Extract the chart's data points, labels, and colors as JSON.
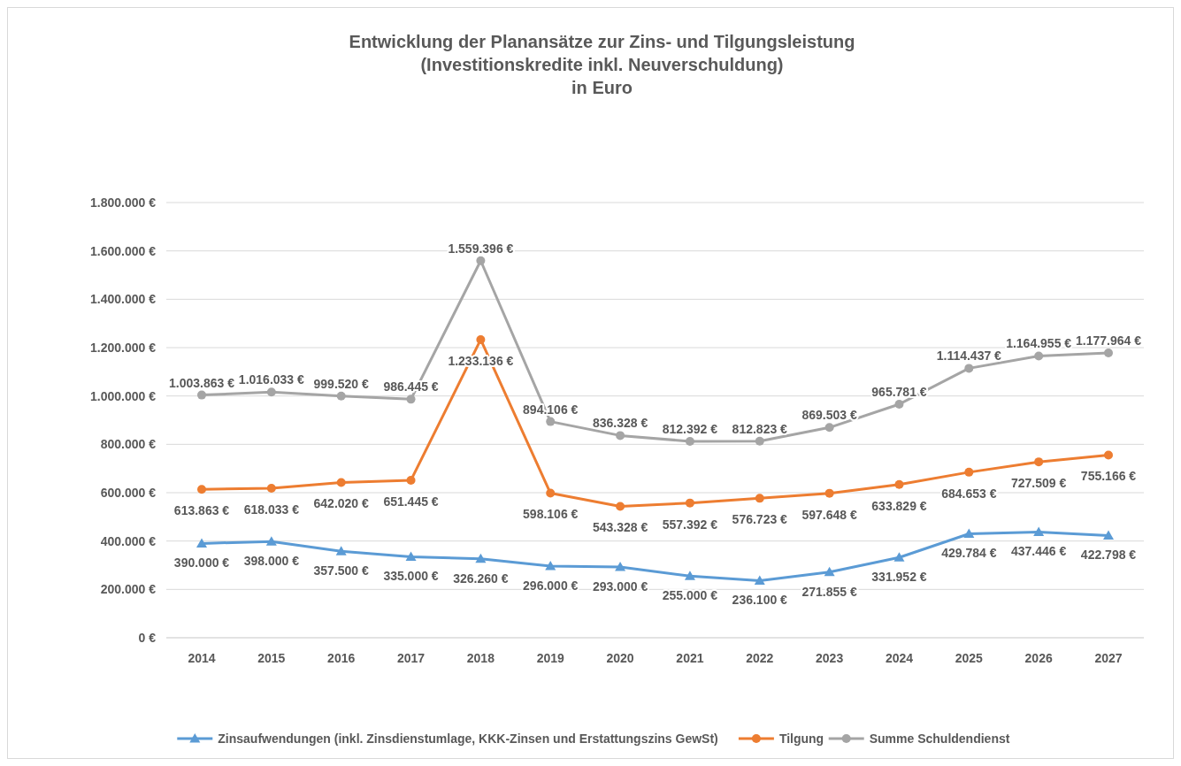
{
  "chart_data": {
    "type": "line",
    "title": "Entwicklung der Planansätze zur Zins- und Tilgungsleistung\n(Investitionskredite inkl. Neuverschuldung)\nin Euro",
    "categories": [
      "2014",
      "2015",
      "2016",
      "2017",
      "2018",
      "2019",
      "2020",
      "2021",
      "2022",
      "2023",
      "2024",
      "2025",
      "2026",
      "2027"
    ],
    "ylim": [
      0,
      1800000
    ],
    "yticks": [
      {
        "value": 0,
        "label": "0 €"
      },
      {
        "value": 200000,
        "label": "200.000 €"
      },
      {
        "value": 400000,
        "label": "400.000 €"
      },
      {
        "value": 600000,
        "label": "600.000 €"
      },
      {
        "value": 800000,
        "label": "800.000 €"
      },
      {
        "value": 1000000,
        "label": "1.000.000 €"
      },
      {
        "value": 1200000,
        "label": "1.200.000 €"
      },
      {
        "value": 1400000,
        "label": "1.400.000 €"
      },
      {
        "value": 1600000,
        "label": "1.600.000 €"
      },
      {
        "value": 1800000,
        "label": "1.800.000 €"
      }
    ],
    "grid": "y",
    "legend": "bottom",
    "series": [
      {
        "name": "Zinsaufwendungen (inkl. Zinsdienstumlage, KKK-Zinsen und Erstattungszins GewSt)",
        "color": "#5b9bd5",
        "marker": "triangle",
        "values": [
          390000,
          398000,
          357500,
          335000,
          326260,
          296000,
          293000,
          255000,
          236100,
          271855,
          331952,
          429784,
          437446,
          422798
        ],
        "value_labels": [
          "390.000 €",
          "398.000 €",
          "357.500 €",
          "335.000 €",
          "326.260 €",
          "296.000 €",
          "293.000 €",
          "255.000 €",
          "236.100 €",
          "271.855 €",
          "331.952 €",
          "429.784 €",
          "437.446 €",
          "422.798 €"
        ]
      },
      {
        "name": "Tilgung",
        "color": "#ed7d31",
        "marker": "circle",
        "values": [
          613863,
          618033,
          642020,
          651445,
          1233136,
          598106,
          543328,
          557392,
          576723,
          597648,
          633829,
          684653,
          727509,
          755166
        ],
        "value_labels": [
          "613.863 €",
          "618.033 €",
          "642.020 €",
          "651.445 €",
          "1.233.136 €",
          "598.106 €",
          "543.328 €",
          "557.392 €",
          "576.723 €",
          "597.648 €",
          "633.829 €",
          "684.653 €",
          "727.509 €",
          "755.166 €"
        ]
      },
      {
        "name": "Summe Schuldendienst",
        "color": "#a5a5a5",
        "marker": "circle",
        "values": [
          1003863,
          1016033,
          999520,
          986445,
          1559396,
          894106,
          836328,
          812392,
          812823,
          869503,
          965781,
          1114437,
          1164955,
          1177964
        ],
        "value_labels": [
          "1.003.863 €",
          "1.016.033 €",
          "999.520 €",
          "986.445 €",
          "1.559.396 €",
          "894.106 €",
          "836.328 €",
          "812.392 €",
          "812.823 €",
          "869.503 €",
          "965.781 €",
          "1.114.437 €",
          "1.164.955 €",
          "1.177.964 €"
        ]
      }
    ]
  }
}
